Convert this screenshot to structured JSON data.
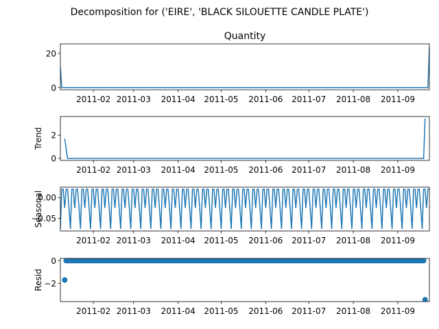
{
  "figure_title": "Decomposition for ('EIRE', 'BLACK SILOUETTE CANDLE PLATE')",
  "colors": {
    "series": "#1f77b4",
    "axis": "#000000",
    "background": "#ffffff"
  },
  "chart_data": [
    {
      "type": "line",
      "title": "Quantity",
      "ylabel": "",
      "xlim": [
        "2011-01-09",
        "2011-09-23"
      ],
      "ylim": [
        -1.3,
        25.6
      ],
      "yticks": [
        0,
        20
      ],
      "ytick_labels": [
        "0",
        "20"
      ],
      "xticks": [
        "2011-02-01",
        "2011-03-01",
        "2011-04-01",
        "2011-05-01",
        "2011-06-01",
        "2011-07-01",
        "2011-08-01",
        "2011-09-01"
      ],
      "xtick_labels": [
        "2011-02",
        "2011-03",
        "2011-04",
        "2011-05",
        "2011-06",
        "2011-07",
        "2011-08",
        "2011-09"
      ],
      "x": [
        "2011-01-09",
        "2011-01-10",
        "2011-09-22",
        "2011-09-23"
      ],
      "y": [
        12,
        0,
        0,
        24
      ]
    },
    {
      "type": "line",
      "title": "",
      "ylabel": "Trend",
      "xlim": [
        "2011-01-09",
        "2011-09-23"
      ],
      "ylim": [
        -0.17,
        3.6
      ],
      "yticks": [
        0,
        2
      ],
      "ytick_labels": [
        "0",
        "2"
      ],
      "xticks": [
        "2011-02-01",
        "2011-03-01",
        "2011-04-01",
        "2011-05-01",
        "2011-06-01",
        "2011-07-01",
        "2011-08-01",
        "2011-09-01"
      ],
      "xtick_labels": [
        "2011-02",
        "2011-03",
        "2011-04",
        "2011-05",
        "2011-06",
        "2011-07",
        "2011-08",
        "2011-09"
      ],
      "x": [
        "2011-01-12",
        "2011-01-14",
        "2011-09-19",
        "2011-09-20"
      ],
      "y": [
        1.71,
        0,
        0,
        3.43
      ]
    },
    {
      "type": "line",
      "title": "",
      "ylabel": "Seasonal",
      "xlim": [
        "2011-01-09",
        "2011-09-23"
      ],
      "ylim": [
        -0.08,
        0.025
      ],
      "yticks": [
        0,
        -0.05
      ],
      "ytick_labels": [
        "0.00",
        "−0.05"
      ],
      "xticks": [
        "2011-02-01",
        "2011-03-01",
        "2011-04-01",
        "2011-05-01",
        "2011-06-01",
        "2011-07-01",
        "2011-08-01",
        "2011-09-01"
      ],
      "xtick_labels": [
        "2011-02",
        "2011-03",
        "2011-04",
        "2011-05",
        "2011-06",
        "2011-07",
        "2011-08",
        "2011-09"
      ],
      "period_days": 7,
      "weekly_pattern": [
        -0.075,
        0.02,
        0.02,
        -0.025,
        0.02,
        0.02,
        -0.025
      ],
      "date_range": [
        "2011-01-09",
        "2011-09-23"
      ]
    },
    {
      "type": "scatter",
      "title": "",
      "ylabel": "Resid",
      "xlim": [
        "2011-01-09",
        "2011-09-23"
      ],
      "ylim": [
        -3.6,
        0.2
      ],
      "yticks": [
        0,
        -2
      ],
      "ytick_labels": [
        "0",
        "−2"
      ],
      "xticks": [
        "2011-02-01",
        "2011-03-01",
        "2011-04-01",
        "2011-05-01",
        "2011-06-01",
        "2011-07-01",
        "2011-08-01",
        "2011-09-01"
      ],
      "xtick_labels": [
        "2011-02",
        "2011-03",
        "2011-04",
        "2011-05",
        "2011-06",
        "2011-07",
        "2011-08",
        "2011-09"
      ],
      "baseline": {
        "from": "2011-01-12",
        "to": "2011-09-20",
        "value": 0
      },
      "outliers": [
        {
          "x": "2011-01-12",
          "y": -1.7
        },
        {
          "x": "2011-09-20",
          "y": -3.43
        }
      ]
    }
  ]
}
